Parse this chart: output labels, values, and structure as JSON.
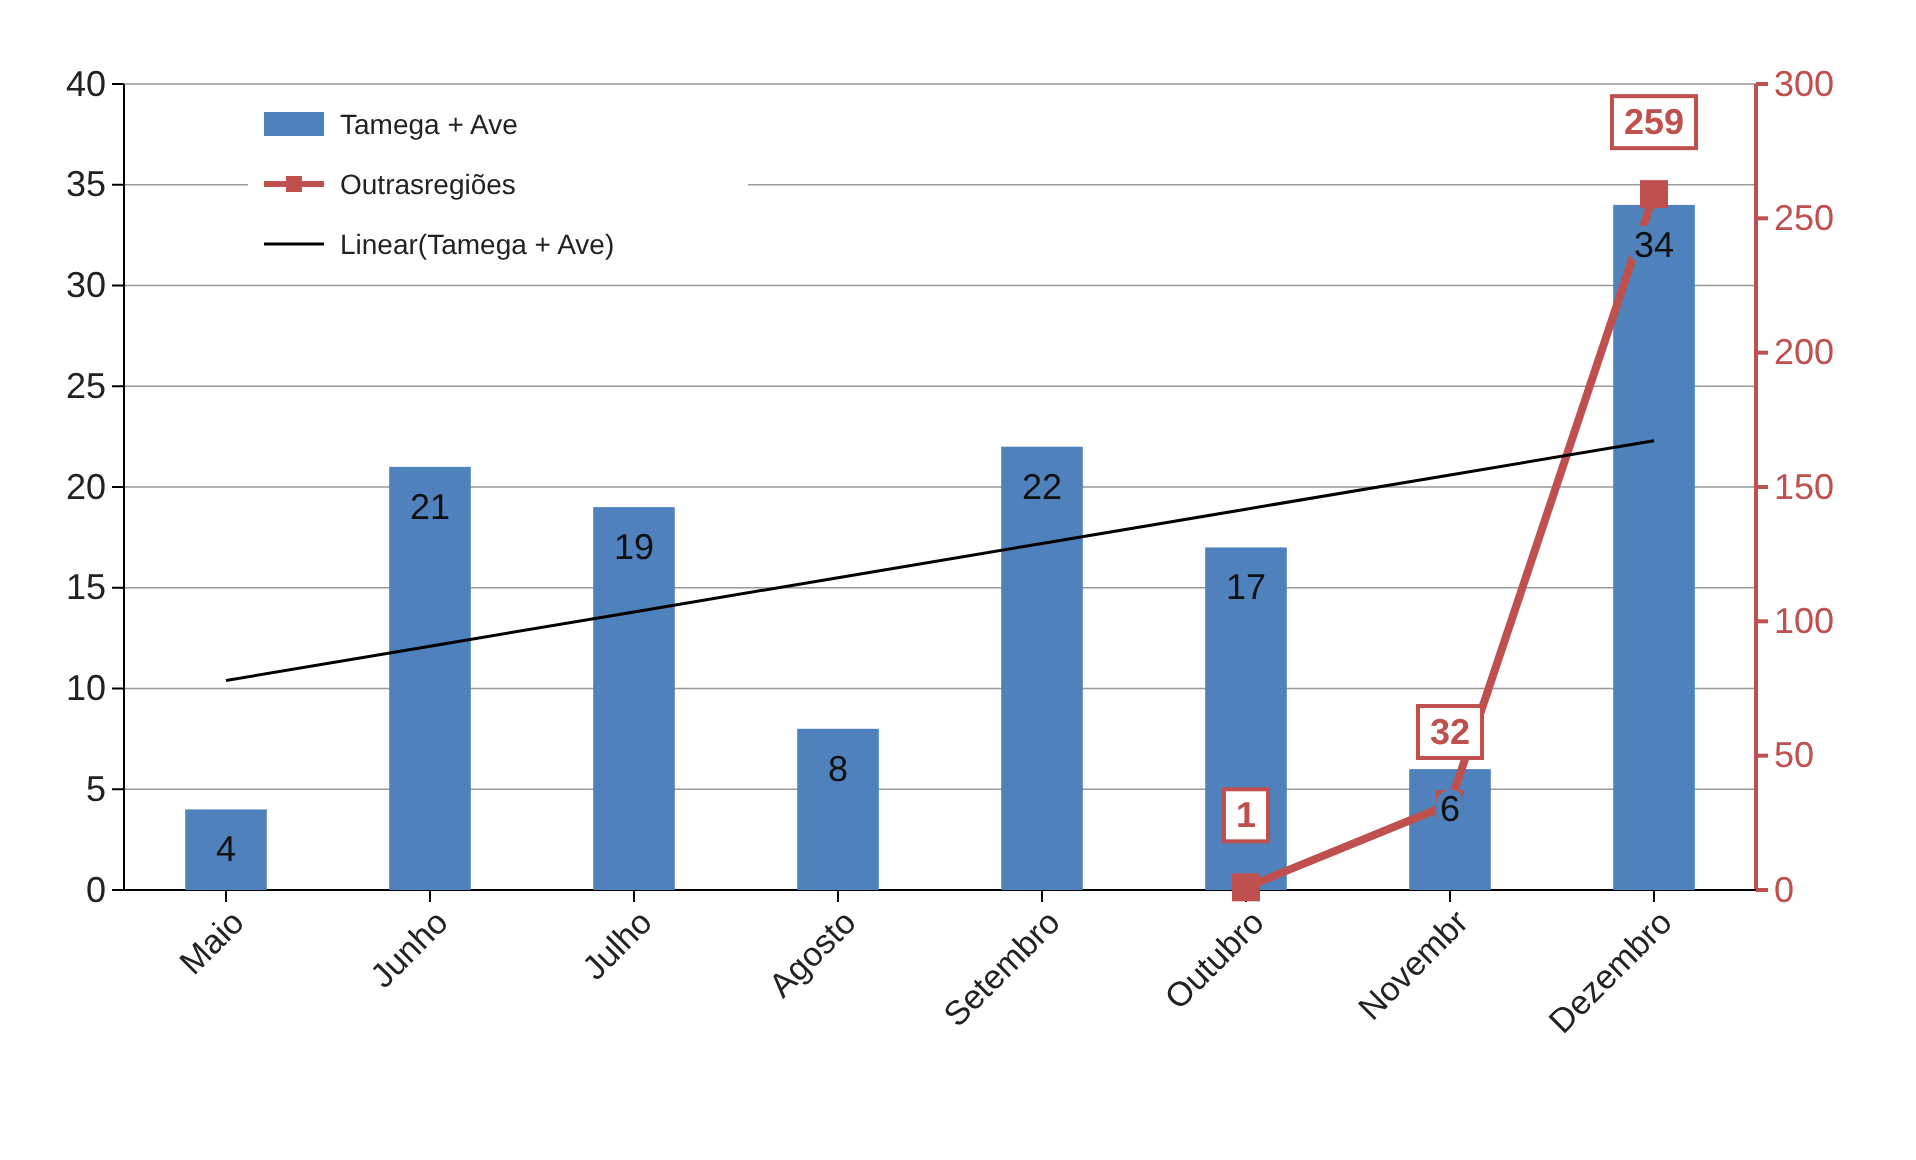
{
  "chart_data": {
    "type": "bar",
    "categories": [
      "Maio",
      "Junho",
      "Julho",
      "Agosto",
      "Setembro",
      "Outubro",
      "Novembr",
      "Dezembro"
    ],
    "series": [
      {
        "name": "Tamega + Ave",
        "color": "#4f81bd",
        "values": [
          4,
          21,
          19,
          8,
          22,
          17,
          6,
          34
        ],
        "value_labels": [
          "4",
          "21",
          "19",
          "8",
          "22",
          "17",
          "6",
          "34"
        ]
      },
      {
        "name": "Outrasregiões",
        "type": "line",
        "axis": "y2",
        "color": "#c0504d",
        "marker": "square",
        "values": [
          null,
          null,
          null,
          null,
          null,
          1,
          32,
          259
        ],
        "value_labels": [
          null,
          null,
          null,
          null,
          null,
          "1",
          "32",
          "259"
        ]
      },
      {
        "name": "Linear(Tamega + Ave)",
        "type": "line",
        "color": "#000000",
        "marker": "none",
        "values": [
          10.4,
          12.1,
          13.8,
          15.5,
          17.2,
          18.9,
          20.6,
          22.3
        ]
      }
    ],
    "ylim": [
      0,
      40
    ],
    "yticks": [
      0,
      5,
      10,
      15,
      20,
      25,
      30,
      35,
      40
    ],
    "y2lim": [
      0,
      300
    ],
    "y2ticks": [
      0,
      50,
      100,
      150,
      200,
      250,
      300
    ],
    "grid": "y",
    "legend": "top left"
  }
}
